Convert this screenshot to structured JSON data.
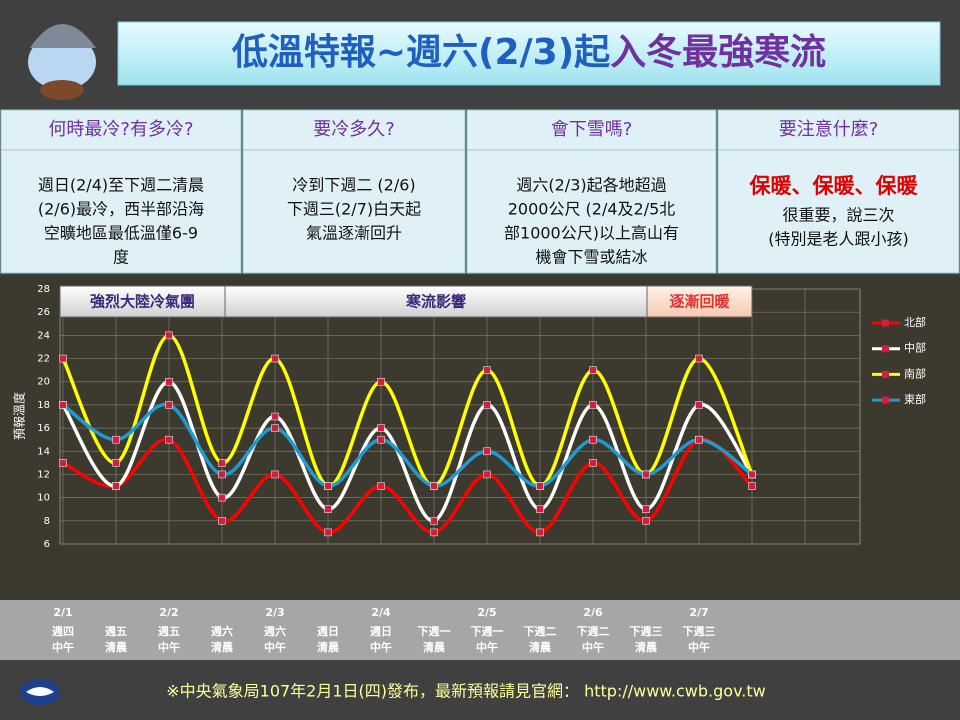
{
  "header": {
    "title": [
      "低溫特報~週六(2/3)起",
      "入冬最強寒流"
    ]
  },
  "panels": [
    {
      "heading": "何時最冷?有多冷?",
      "lines": [
        "週日(2/4)至下週二清晨",
        "(2/6)最冷，西半部沿海",
        "空曠地區最低溫僅6-9",
        "度"
      ]
    },
    {
      "heading": "要冷多久?",
      "lines": [
        "冷到下週二 (2/6)",
        "下週三(2/7)白天起",
        "氣溫逐漸回升"
      ]
    },
    {
      "heading": "會下雪嗎?",
      "lines": [
        "週六(2/3)起各地超過",
        "2000公尺 (2/4及2/5北",
        "部1000公尺)以上高山有",
        "機會下雪或結冰"
      ]
    },
    {
      "heading": "要注意什麼?",
      "highlight": "保暖、保暖、保暖",
      "lines": [
        "很重要，說三次",
        "(特別是老人跟小孩)"
      ]
    }
  ],
  "phases": [
    "強烈大陸冷氣團",
    "寒流影響",
    "逐漸回暖"
  ],
  "chart_data": {
    "type": "line",
    "y_label": "預報溫度",
    "categories": [
      [
        "2/1",
        "週四",
        "中午"
      ],
      [
        "週五",
        "清晨"
      ],
      [
        "2/2",
        "週五",
        "中午"
      ],
      [
        "週六",
        "清晨"
      ],
      [
        "2/3",
        "週六",
        "中午"
      ],
      [
        "週日",
        "清晨"
      ],
      [
        "2/4",
        "週日",
        "中午"
      ],
      [
        "下週一",
        "清晨"
      ],
      [
        "2/5",
        "下週一",
        "中午"
      ],
      [
        "下週二",
        "清晨"
      ],
      [
        "2/6",
        "下週二",
        "中午"
      ],
      [
        "下週三",
        "清晨"
      ],
      [
        "2/7",
        "下週三",
        "中午"
      ],
      null
    ],
    "series": [
      {
        "name": "北部",
        "color": "#ff0000",
        "values": [
          13,
          11,
          15,
          8,
          12,
          7,
          11,
          7,
          12,
          7,
          13,
          8,
          15,
          11
        ]
      },
      {
        "name": "中部",
        "color": "#ffffff",
        "values": [
          18,
          11,
          20,
          10,
          17,
          9,
          16,
          8,
          18,
          9,
          18,
          9,
          18,
          12
        ]
      },
      {
        "name": "南部",
        "color": "#ffff00",
        "values": [
          22,
          13,
          24,
          13,
          22,
          11,
          20,
          11,
          21,
          11,
          21,
          12,
          22,
          12
        ]
      },
      {
        "name": "東部",
        "color": "#1f9bd1",
        "values": [
          18,
          15,
          18,
          12,
          16,
          11,
          15,
          11,
          14,
          11,
          15,
          12,
          15,
          12
        ]
      }
    ],
    "ylim": [
      6,
      28
    ],
    "yticks": [
      6,
      8,
      10,
      12,
      14,
      16,
      18,
      20,
      22,
      24,
      26,
      28
    ],
    "grid": true
  },
  "footer": "※中央氣象局107年2月1日(四)發布，最新預報請見官網： http://www.cwb.gov.tw"
}
